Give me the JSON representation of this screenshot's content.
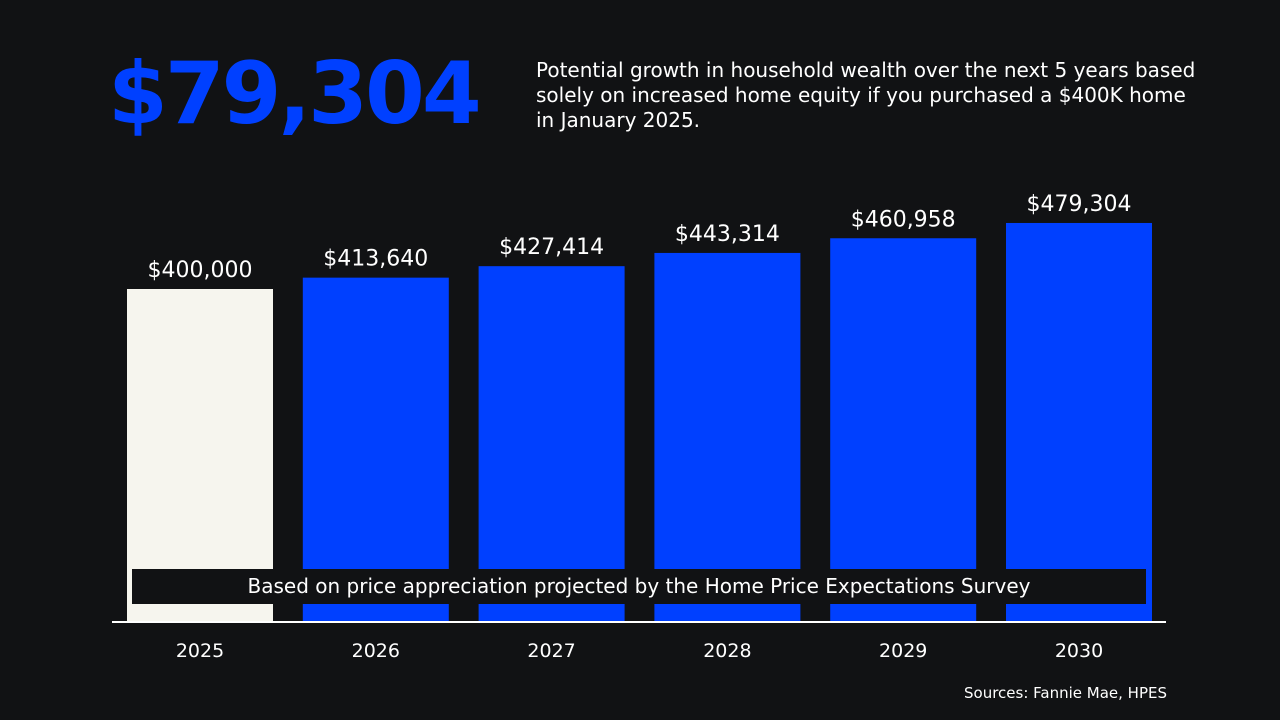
{
  "headline": "$79,304",
  "description": "Potential growth in household wealth over the next 5 years based solely on increased home equity if you purchased a $400K home in January 2025.",
  "note": "Based on price appreciation projected by the Home Price Expectations Survey",
  "source": "Sources: Fannie Mae, HPES",
  "colors": {
    "background": "#111214",
    "accent": "#0040ff",
    "base_bar": "#f6f5ee",
    "text": "#ffffff"
  },
  "chart_data": {
    "type": "bar",
    "categories": [
      "2025",
      "2026",
      "2027",
      "2028",
      "2029",
      "2030"
    ],
    "values": [
      400000,
      413640,
      427414,
      443314,
      460958,
      479304
    ],
    "data_labels": [
      "$400,000",
      "$413,640",
      "$427,414",
      "$443,314",
      "$460,958",
      "$479,304"
    ],
    "bar_colors": [
      "#f6f5ee",
      "#0040ff",
      "#0040ff",
      "#0040ff",
      "#0040ff",
      "#0040ff"
    ],
    "title": "",
    "xlabel": "",
    "ylabel": "",
    "ylim": [
      0,
      600000
    ],
    "grid": false,
    "y_axis_visible": false
  }
}
